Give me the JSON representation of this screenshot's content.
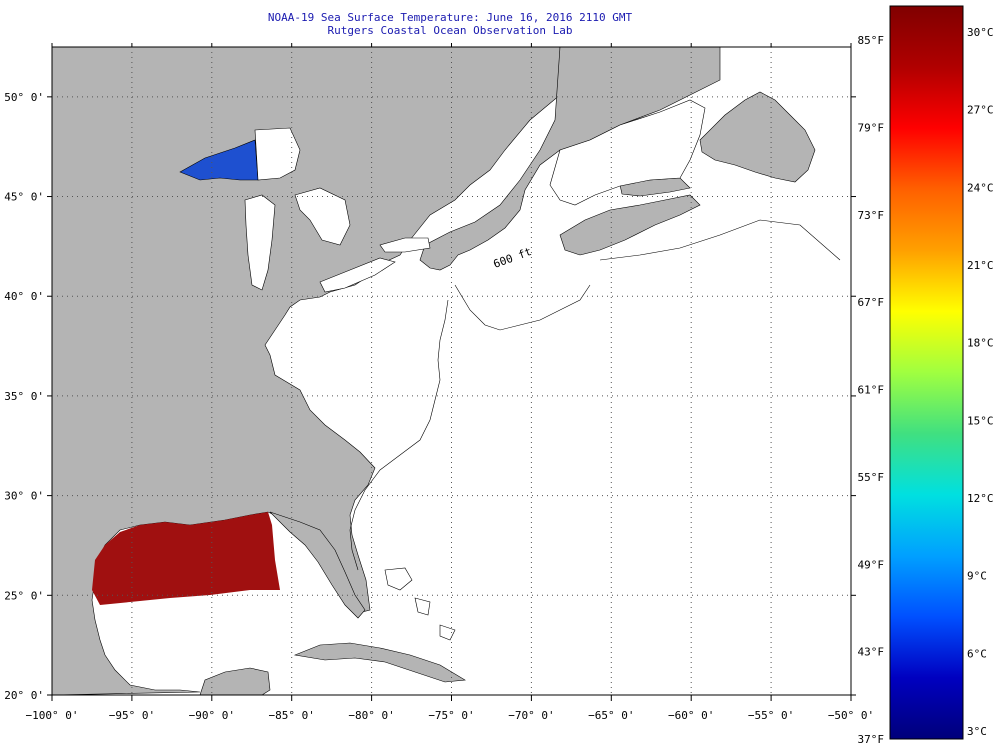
{
  "title": {
    "line1": "NOAA-19 Sea Surface Temperature:  June 16, 2016 2110 GMT",
    "line2": "Rutgers Coastal Ocean Observation Lab"
  },
  "map": {
    "lon_range": [
      -100,
      -50
    ],
    "lat_range": [
      20,
      52.5
    ],
    "lon_ticks": [
      {
        "value": -100,
        "label": "−100° 0'"
      },
      {
        "value": -95,
        "label": "−95° 0'"
      },
      {
        "value": -90,
        "label": "−90° 0'"
      },
      {
        "value": -85,
        "label": "−85° 0'"
      },
      {
        "value": -80,
        "label": "−80° 0'"
      },
      {
        "value": -75,
        "label": "−75° 0'"
      },
      {
        "value": -70,
        "label": "−70° 0'"
      },
      {
        "value": -65,
        "label": "−65° 0'"
      },
      {
        "value": -60,
        "label": "−60° 0'"
      },
      {
        "value": -55,
        "label": "−55° 0'"
      },
      {
        "value": -50,
        "label": "−50° 0'"
      }
    ],
    "lat_ticks": [
      {
        "value": 20,
        "label": "20° 0'"
      },
      {
        "value": 25,
        "label": "25° 0'"
      },
      {
        "value": 30,
        "label": "30° 0'"
      },
      {
        "value": 35,
        "label": "35° 0'"
      },
      {
        "value": 40,
        "label": "40° 0'"
      },
      {
        "value": 45,
        "label": "45° 0'"
      },
      {
        "value": 50,
        "label": "50° 0'"
      }
    ],
    "contour_label": "600 ft",
    "colors": {
      "land": "#b4b4b4",
      "ocean": "#ffffff",
      "warm_water": "#a01010",
      "cold_lake": "#1e50d0",
      "grid": "#555555"
    }
  },
  "color_scale": {
    "celsius_labels": [
      "30°C",
      "27°C",
      "24°C",
      "21°C",
      "18°C",
      "15°C",
      "12°C",
      "9°C",
      "6°C",
      "3°C"
    ],
    "fahrenheit_labels": [
      "85°F",
      "79°F",
      "73°F",
      "67°F",
      "61°F",
      "55°F",
      "49°F",
      "43°F",
      "37°F"
    ],
    "gradient_colors": [
      "#800000",
      "#b00000",
      "#ff0000",
      "#ff6000",
      "#ffa000",
      "#ffff00",
      "#a0ff40",
      "#40e080",
      "#00e0e0",
      "#00a0ff",
      "#0050ff",
      "#0000c0",
      "#00007a"
    ]
  }
}
